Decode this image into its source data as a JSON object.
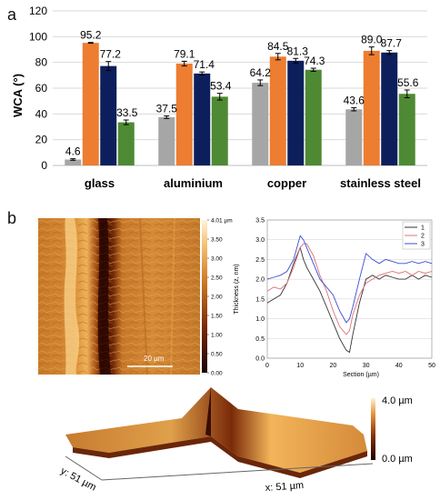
{
  "panel_a_label": "a",
  "panel_b_label": "b",
  "chart_data": [
    {
      "type": "bar",
      "ylabel": "WCA (°)",
      "ylim": [
        0,
        120
      ],
      "yticks": [
        0,
        20,
        40,
        60,
        80,
        100,
        120
      ],
      "categories": [
        "glass",
        "aluminium",
        "copper",
        "stainless steel"
      ],
      "series": [
        {
          "color": "#a6a6a6",
          "values": [
            4.6,
            37.5,
            64.2,
            43.6
          ],
          "errors": [
            0.6,
            1.0,
            2.2,
            1.2
          ]
        },
        {
          "color": "#ed7d31",
          "values": [
            95.2,
            79.1,
            84.5,
            89.0
          ],
          "errors": [
            0.3,
            1.8,
            2.5,
            3.0
          ]
        },
        {
          "color": "#0c1f5c",
          "values": [
            77.2,
            71.4,
            81.3,
            87.7
          ],
          "errors": [
            3.5,
            1.2,
            1.8,
            1.5
          ]
        },
        {
          "color": "#4e8a34",
          "values": [
            33.5,
            53.4,
            74.3,
            55.6
          ],
          "errors": [
            1.8,
            2.6,
            1.2,
            3.0
          ]
        }
      ],
      "data_labels": [
        [
          "4.6",
          "95.2",
          "77.2",
          "33.5"
        ],
        [
          "37.5",
          "79.1",
          "71.4",
          "53.4"
        ],
        [
          "64.2",
          "84.5",
          "81.3",
          "74.3"
        ],
        [
          "43.6",
          "89.0",
          "87.7",
          "55.6"
        ]
      ]
    },
    {
      "type": "line",
      "xlabel": "Section (µm)",
      "ylabel": "Thickness (z, nm)",
      "xlim": [
        0,
        50
      ],
      "ylim": [
        0,
        3.5
      ],
      "xticks": [
        0,
        10,
        20,
        30,
        40,
        50
      ],
      "yticks": [
        0.0,
        0.5,
        1.0,
        1.5,
        2.0,
        2.5,
        3.0,
        3.5
      ],
      "legend_position": "top-right",
      "series": [
        {
          "name": "1",
          "color": "#333333",
          "x": [
            0,
            2,
            4,
            6,
            8,
            10,
            11,
            12,
            14,
            16,
            18,
            20,
            22,
            24,
            25,
            26,
            28,
            30,
            32,
            34,
            36,
            38,
            40,
            42,
            44,
            46,
            48,
            50
          ],
          "y": [
            1.4,
            1.5,
            1.6,
            1.9,
            2.4,
            2.8,
            2.5,
            2.3,
            2.0,
            1.7,
            1.3,
            0.9,
            0.5,
            0.2,
            0.15,
            0.6,
            1.4,
            2.0,
            2.1,
            2.0,
            2.1,
            2.05,
            2.0,
            2.0,
            2.1,
            2.0,
            2.1,
            2.05
          ]
        },
        {
          "name": "2",
          "color": "#e0707a",
          "x": [
            0,
            2,
            4,
            6,
            8,
            10,
            11,
            12,
            14,
            16,
            18,
            20,
            22,
            24,
            25,
            26,
            28,
            30,
            32,
            34,
            36,
            38,
            40,
            42,
            44,
            46,
            48,
            50
          ],
          "y": [
            1.7,
            1.8,
            1.75,
            1.9,
            2.3,
            2.8,
            2.9,
            2.9,
            2.6,
            2.1,
            1.7,
            1.2,
            0.8,
            0.6,
            0.7,
            1.1,
            1.6,
            1.9,
            2.0,
            2.1,
            2.15,
            2.2,
            2.15,
            2.2,
            2.1,
            2.2,
            2.15,
            2.2
          ]
        },
        {
          "name": "3",
          "color": "#3b4fd1",
          "x": [
            0,
            2,
            4,
            6,
            8,
            10,
            11,
            12,
            14,
            16,
            18,
            20,
            22,
            24,
            25,
            26,
            28,
            30,
            32,
            34,
            36,
            38,
            40,
            42,
            44,
            46,
            48,
            50
          ],
          "y": [
            2.0,
            2.05,
            2.1,
            2.2,
            2.5,
            3.1,
            3.0,
            2.8,
            2.4,
            2.0,
            1.8,
            1.6,
            1.2,
            0.9,
            1.0,
            1.3,
            2.0,
            2.65,
            2.5,
            2.4,
            2.5,
            2.45,
            2.4,
            2.4,
            2.45,
            2.4,
            2.45,
            2.4
          ]
        }
      ]
    }
  ],
  "afm": {
    "colorbar_ticks": [
      "4.01 µm",
      "3.50",
      "3.00",
      "2.50",
      "2.00",
      "1.50",
      "1.00",
      "0.50",
      "0.00"
    ],
    "scalebar_label": "20 µm"
  },
  "surface3d": {
    "z_max_label": "4.0 µm",
    "z_min_label": "0.0 µm",
    "y_axis_label": "y: 51 µm",
    "x_axis_label": "x: 51 µm"
  }
}
